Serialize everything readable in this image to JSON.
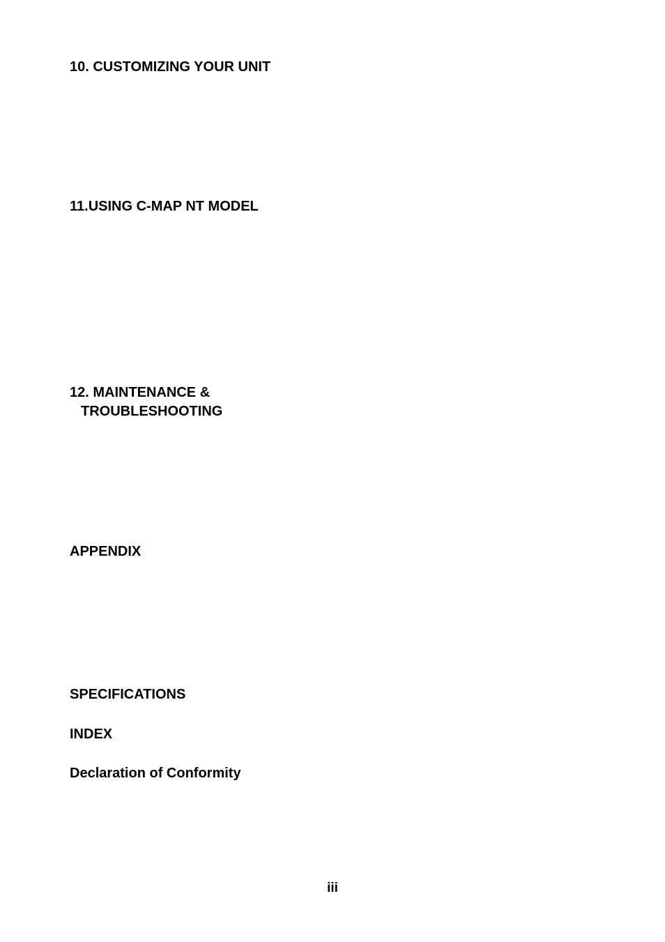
{
  "headings": {
    "h1": "10. CUSTOMIZING YOUR UNIT",
    "h2": "11.USING C-MAP NT MODEL",
    "h3_line1": "12. MAINTENANCE &",
    "h3_line2": "TROUBLESHOOTING",
    "h4": "APPENDIX",
    "h5": "SPECIFICATIONS",
    "h6": "INDEX",
    "h7": "Declaration of Conformity"
  },
  "page_number": "iii",
  "style": {
    "heading_fontsize": 20,
    "heading_weight": "bold",
    "text_color": "#000000",
    "background_color": "#ffffff",
    "font_family": "Arial, Helvetica, sans-serif"
  }
}
